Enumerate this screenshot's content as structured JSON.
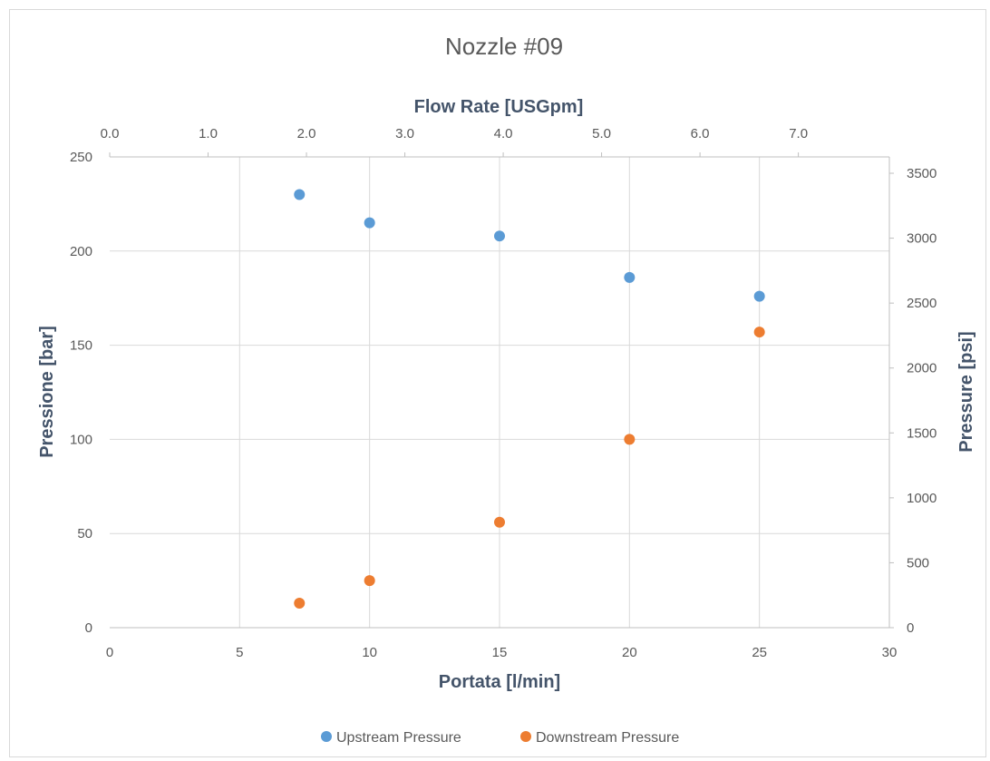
{
  "chart_data": {
    "type": "scatter",
    "title": "Nozzle #09",
    "xlabel": "Portata [l/min]",
    "ylabel": "Pressione [bar]",
    "x2label": "Flow Rate [USGpm]",
    "y2label": "Pressure [psi]",
    "xlim": [
      0,
      30
    ],
    "ylim": [
      0,
      250
    ],
    "x2lim": [
      0,
      7.925
    ],
    "y2lim": [
      0,
      3625.9
    ],
    "xticks": [
      "0",
      "5",
      "10",
      "15",
      "20",
      "25",
      "30"
    ],
    "yticks": [
      "0",
      "50",
      "100",
      "150",
      "200",
      "250"
    ],
    "x2ticks": [
      "0.0",
      "1.0",
      "2.0",
      "3.0",
      "4.0",
      "5.0",
      "6.0",
      "7.0"
    ],
    "y2ticks": [
      "0",
      "500",
      "1000",
      "1500",
      "2000",
      "2500",
      "3000",
      "3500"
    ],
    "grid": "vertical-and-horizontal",
    "legend_position": "bottom",
    "series": [
      {
        "name": "Upstream Pressure",
        "color": "#5b9bd5",
        "x": [
          7.3,
          10,
          15,
          20,
          25
        ],
        "y": [
          230,
          215,
          208,
          186,
          176
        ]
      },
      {
        "name": "Downstream Pressure",
        "color": "#ed7d31",
        "x": [
          7.3,
          10,
          15,
          20,
          25
        ],
        "y": [
          13,
          25,
          56,
          100,
          157
        ]
      }
    ]
  }
}
